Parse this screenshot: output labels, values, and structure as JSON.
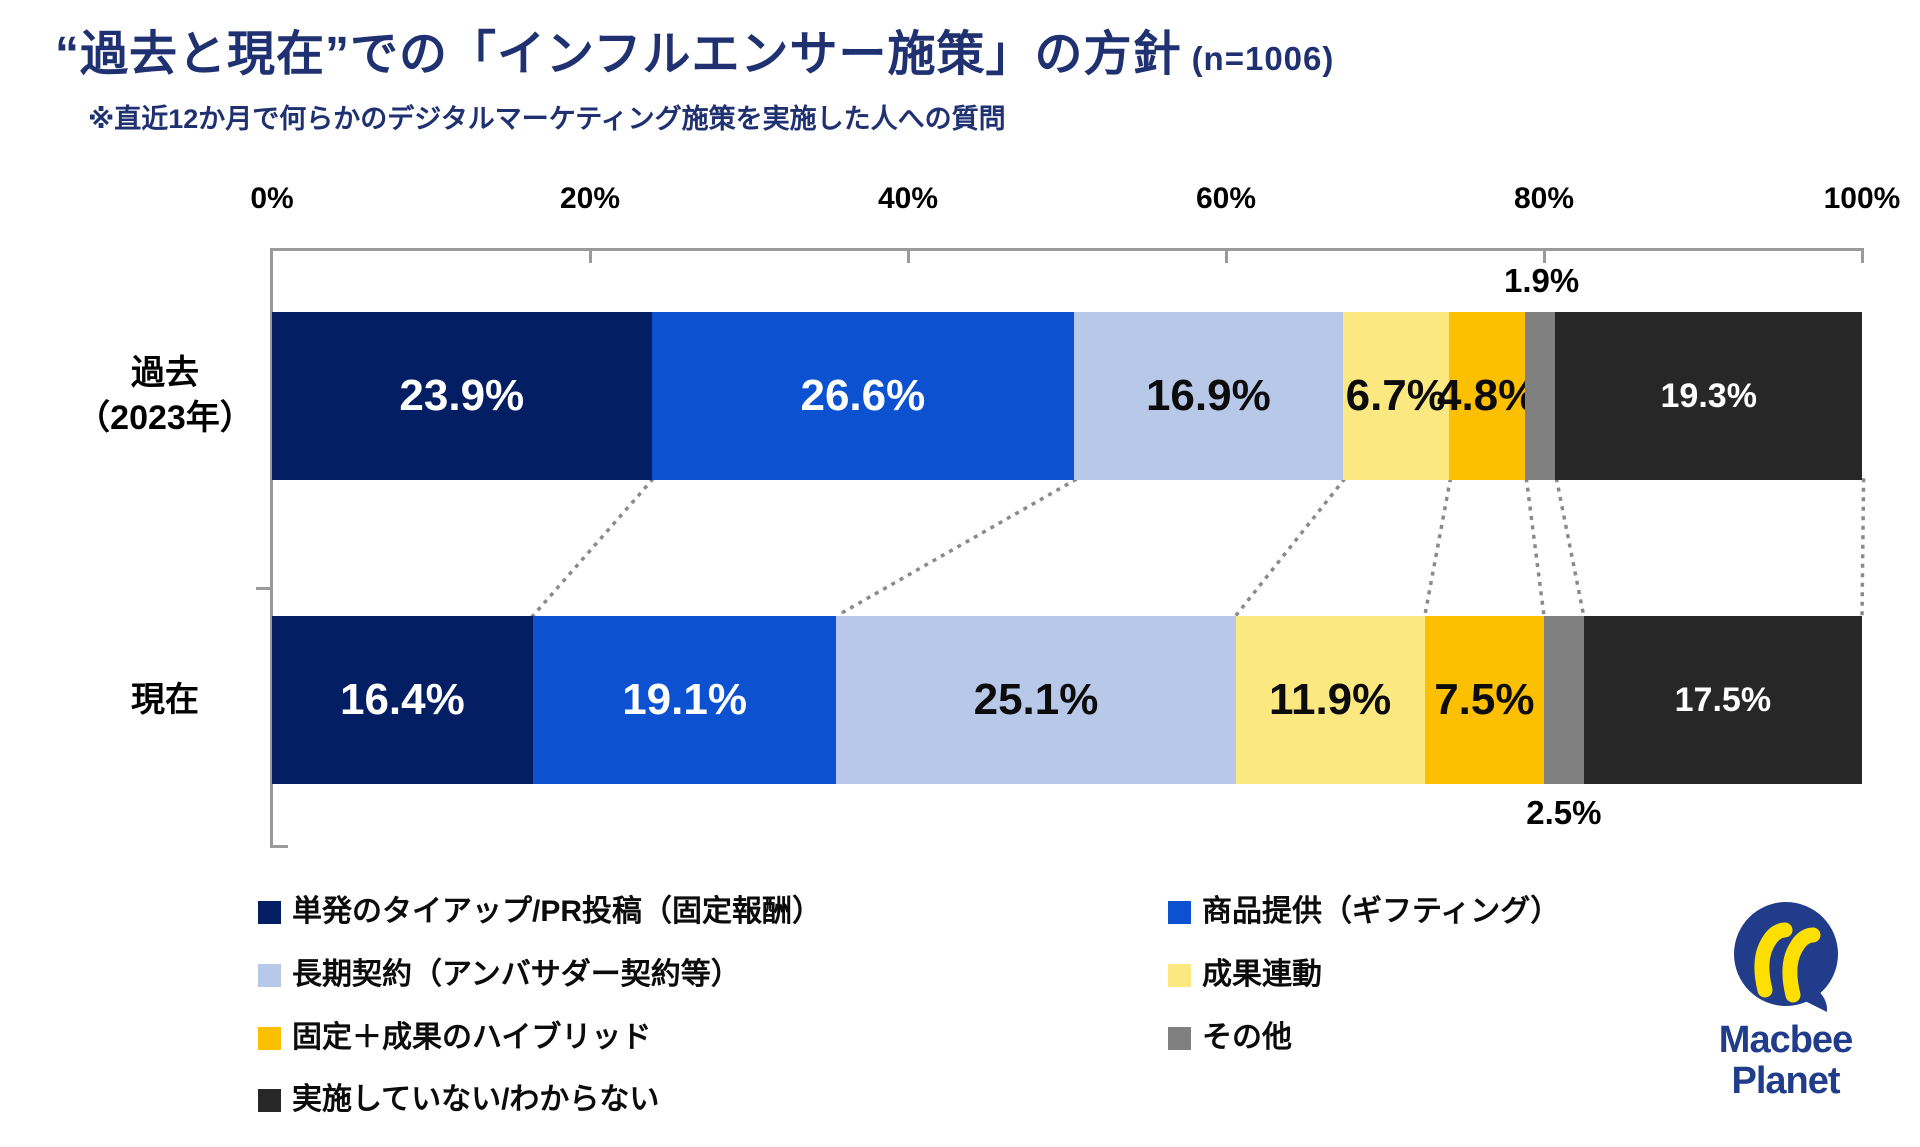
{
  "title": {
    "main": "“過去と現在”での「インフルエンサー施策」の方針",
    "sample": "(n=1006)"
  },
  "subtitle": "※直近12か月で何らかのデジタルマーケティング施策を実施した人への質問",
  "chart_data": {
    "type": "bar",
    "variant": "horizontal-stacked-100-percent",
    "title": "“過去と現在”での「インフルエンサー施策」の方針 (n=1006)",
    "categories": [
      "過去（2023年）",
      "現在"
    ],
    "category_lines": [
      [
        "過去",
        "（2023年）"
      ],
      [
        "現在"
      ]
    ],
    "x_ticks": [
      "0%",
      "20%",
      "40%",
      "60%",
      "80%",
      "100%"
    ],
    "xlim": [
      0,
      100
    ],
    "grid": false,
    "legend_position": "bottom-two-columns",
    "series": [
      {
        "name": "単発のタイアップ/PR投稿（固定報酬）",
        "color": "#041e63",
        "values": [
          23.9,
          16.4
        ],
        "label_style": "inside-large"
      },
      {
        "name": "商品提供（ギフティング）",
        "color": "#0b51d0",
        "values": [
          26.6,
          19.1
        ],
        "label_style": "inside-large"
      },
      {
        "name": "長期契約（アンバサダー契約等）",
        "color": "#b8c8e8",
        "values": [
          16.9,
          25.1
        ],
        "label_style": "inside-large"
      },
      {
        "name": "成果連動",
        "color": "#fce881",
        "values": [
          6.7,
          11.9
        ],
        "label_style": "inside-large"
      },
      {
        "name": "固定＋成果のハイブリッド",
        "color": "#fcc000",
        "values": [
          4.8,
          7.5
        ],
        "label_style": "inside-large"
      },
      {
        "name": "その他",
        "color": "#808080",
        "values": [
          1.9,
          2.5
        ],
        "label_style": "outside"
      },
      {
        "name": "実施していない/わからない",
        "color": "#272727",
        "values": [
          19.3,
          17.5
        ],
        "label_style": "inside-small"
      }
    ]
  },
  "logo": {
    "line1": "Macbee",
    "line2": "Planet",
    "blue": "#203c8a",
    "yellow": "#ffdf00"
  },
  "colors": {
    "title": "#1f3170",
    "frame": "#9a9a9a",
    "connector": "#8a8a8a",
    "label_dark": "#0c0c0c",
    "label_light": "#ffffff"
  }
}
